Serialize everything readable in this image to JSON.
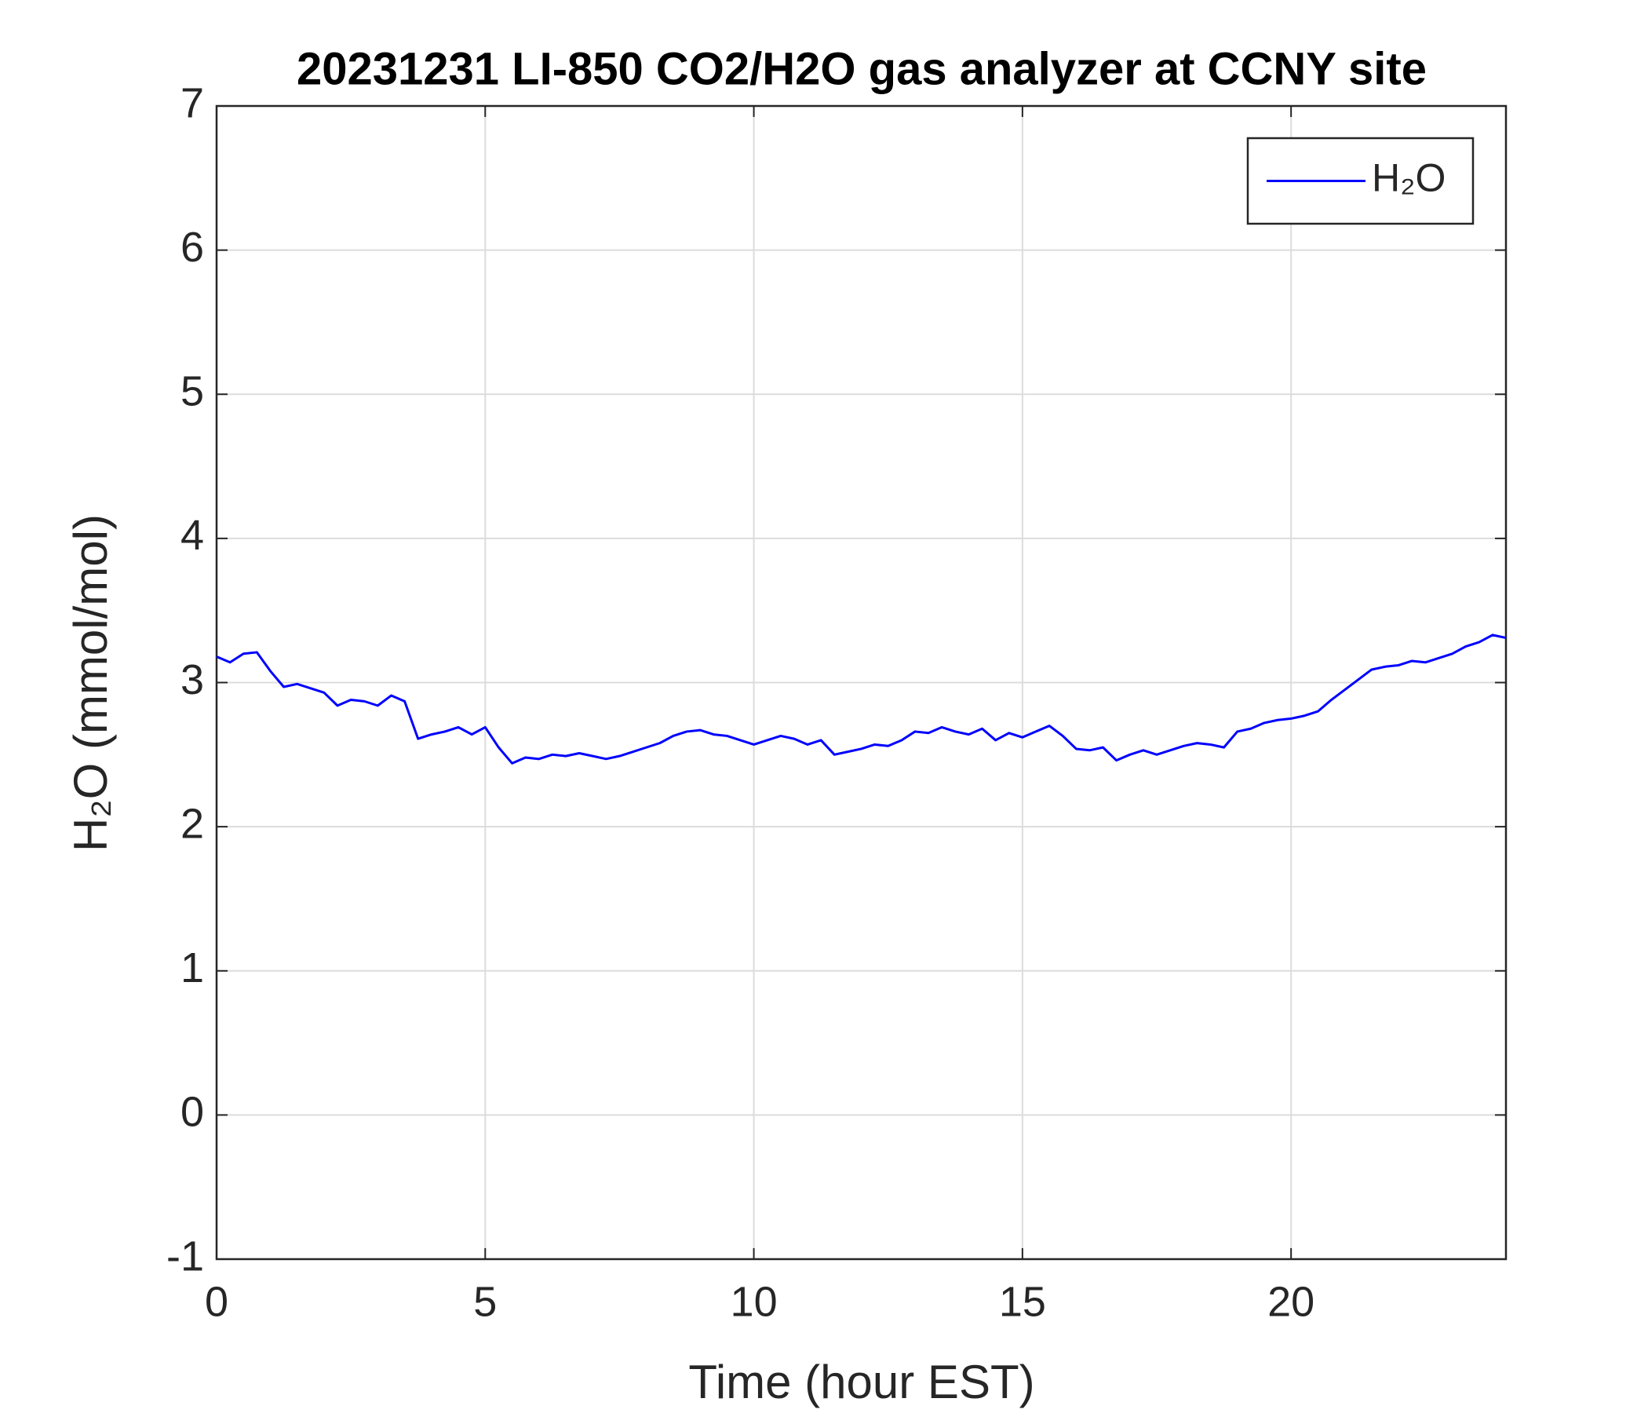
{
  "chart_data": {
    "type": "line",
    "title": "20231231 LI-850 CO2/H2O gas analyzer at CCNY site",
    "x_label": "Time (hour EST)",
    "y_label": "H₂O (mmol/mol)",
    "x": [
      0,
      0.25,
      0.5,
      0.75,
      1,
      1.25,
      1.5,
      1.75,
      2,
      2.25,
      2.5,
      2.75,
      3,
      3.25,
      3.5,
      3.75,
      4,
      4.25,
      4.5,
      4.75,
      5,
      5.25,
      5.5,
      5.75,
      6,
      6.25,
      6.5,
      6.75,
      7,
      7.25,
      7.5,
      7.75,
      8,
      8.25,
      8.5,
      8.75,
      9,
      9.25,
      9.5,
      9.75,
      10,
      10.25,
      10.5,
      10.75,
      11,
      11.25,
      11.5,
      11.75,
      12,
      12.25,
      12.5,
      12.75,
      13,
      13.25,
      13.5,
      13.75,
      14,
      14.25,
      14.5,
      14.75,
      15,
      15.25,
      15.5,
      15.75,
      16,
      16.25,
      16.5,
      16.75,
      17,
      17.25,
      17.5,
      17.75,
      18,
      18.25,
      18.5,
      18.75,
      19,
      19.25,
      19.5,
      19.75,
      20,
      20.25,
      20.5,
      20.75,
      21,
      21.25,
      21.5,
      21.75,
      22,
      22.25,
      22.5,
      22.75,
      23,
      23.25,
      23.5,
      23.75,
      24
    ],
    "series": [
      {
        "name": "H₂O",
        "color": "#0000ff",
        "values": [
          3.18,
          3.14,
          3.2,
          3.21,
          3.08,
          2.97,
          2.99,
          2.96,
          2.93,
          2.84,
          2.88,
          2.87,
          2.84,
          2.91,
          2.87,
          2.61,
          2.64,
          2.66,
          2.69,
          2.64,
          2.69,
          2.55,
          2.44,
          2.48,
          2.47,
          2.5,
          2.49,
          2.51,
          2.49,
          2.47,
          2.49,
          2.52,
          2.55,
          2.58,
          2.63,
          2.66,
          2.67,
          2.64,
          2.63,
          2.6,
          2.57,
          2.6,
          2.63,
          2.61,
          2.57,
          2.6,
          2.5,
          2.52,
          2.54,
          2.57,
          2.56,
          2.6,
          2.66,
          2.65,
          2.69,
          2.66,
          2.64,
          2.68,
          2.6,
          2.65,
          2.62,
          2.66,
          2.7,
          2.63,
          2.54,
          2.53,
          2.55,
          2.46,
          2.5,
          2.53,
          2.5,
          2.53,
          2.56,
          2.58,
          2.57,
          2.55,
          2.66,
          2.68,
          2.72,
          2.74,
          2.75,
          2.77,
          2.8,
          2.88,
          2.95,
          3.02,
          3.09,
          3.11,
          3.12,
          3.15,
          3.14,
          3.17,
          3.2,
          3.25,
          3.28,
          3.33,
          3.31
        ]
      }
    ],
    "xlim": [
      0,
      24
    ],
    "xticks": [
      0,
      5,
      10,
      15,
      20
    ],
    "ylim": [
      -1,
      7
    ],
    "yticks": [
      -1,
      0,
      1,
      2,
      3,
      4,
      5,
      6,
      7
    ],
    "grid": true,
    "legend": "upper right"
  }
}
